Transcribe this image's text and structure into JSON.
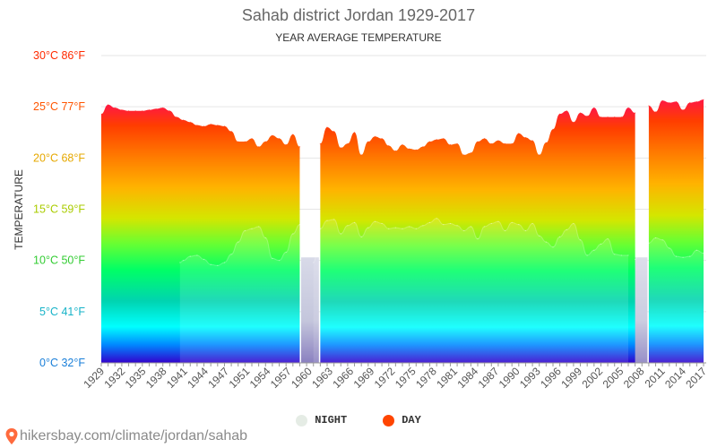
{
  "chart_data": {
    "type": "area",
    "title": "Sahab district Jordan 1929-2017",
    "subtitle": "YEAR AVERAGE TEMPERATURE",
    "ylabel": "TEMPERATURE",
    "xlabel": "",
    "ylim": [
      0,
      30
    ],
    "xlim": [
      1929,
      2017
    ],
    "grid": true,
    "legend_position": "bottom-center",
    "yticks": [
      {
        "value": 0,
        "label": "0°C 32°F",
        "color": "#1a7fd9"
      },
      {
        "value": 5,
        "label": "5°C 41°F",
        "color": "#17b3c8"
      },
      {
        "value": 10,
        "label": "10°C 50°F",
        "color": "#33cc33"
      },
      {
        "value": 15,
        "label": "15°C 59°F",
        "color": "#aacc00"
      },
      {
        "value": 20,
        "label": "20°C 68°F",
        "color": "#e6a800"
      },
      {
        "value": 25,
        "label": "25°C 77°F",
        "color": "#ff5500"
      },
      {
        "value": 30,
        "label": "30°C 86°F",
        "color": "#ff2a00"
      }
    ],
    "xticks": [
      "1929",
      "1932",
      "1935",
      "1938",
      "1941",
      "1944",
      "1947",
      "1951",
      "1954",
      "1957",
      "1960",
      "1963",
      "1966",
      "1969",
      "1972",
      "1975",
      "1978",
      "1981",
      "1984",
      "1987",
      "1990",
      "1993",
      "1996",
      "1999",
      "2002",
      "2005",
      "2008",
      "2011",
      "2014",
      "2017"
    ],
    "series": [
      {
        "name": "DAY",
        "color": "#ff4500",
        "segments": [
          [
            [
              1929,
              24.3
            ],
            [
              1930,
              25.2
            ],
            [
              1931,
              24.9
            ],
            [
              1932,
              24.7
            ],
            [
              1933,
              24.6
            ],
            [
              1934,
              24.6
            ],
            [
              1935,
              24.6
            ],
            [
              1936,
              24.7
            ],
            [
              1937,
              24.8
            ],
            [
              1938,
              24.9
            ],
            [
              1939,
              24.6
            ],
            [
              1940,
              24.0
            ],
            [
              1941,
              23.7
            ],
            [
              1942,
              23.5
            ],
            [
              1943,
              23.2
            ],
            [
              1944,
              23.1
            ],
            [
              1945,
              23.3
            ],
            [
              1946,
              23.2
            ],
            [
              1947,
              23.1
            ],
            [
              1948,
              22.6
            ],
            [
              1949,
              21.6
            ],
            [
              1950,
              21.6
            ],
            [
              1951,
              21.9
            ],
            [
              1952,
              21.1
            ],
            [
              1953,
              21.6
            ],
            [
              1954,
              22.2
            ],
            [
              1955,
              21.9
            ],
            [
              1956,
              21.3
            ],
            [
              1957,
              22.3
            ],
            [
              1958,
              21.1
            ]
          ],
          [
            [
              1961,
              21.4
            ],
            [
              1962,
              23.0
            ],
            [
              1963,
              22.6
            ],
            [
              1964,
              21.0
            ],
            [
              1965,
              21.4
            ],
            [
              1966,
              22.5
            ],
            [
              1967,
              20.3
            ],
            [
              1968,
              21.6
            ],
            [
              1969,
              22.1
            ],
            [
              1970,
              21.9
            ],
            [
              1971,
              21.2
            ],
            [
              1972,
              20.7
            ],
            [
              1973,
              21.3
            ],
            [
              1974,
              20.9
            ],
            [
              1975,
              20.8
            ],
            [
              1976,
              21.1
            ],
            [
              1977,
              21.6
            ],
            [
              1978,
              21.8
            ],
            [
              1979,
              21.9
            ],
            [
              1980,
              21.3
            ],
            [
              1981,
              21.4
            ],
            [
              1982,
              20.3
            ],
            [
              1983,
              20.5
            ],
            [
              1984,
              21.6
            ],
            [
              1985,
              21.9
            ],
            [
              1986,
              21.4
            ],
            [
              1987,
              21.7
            ],
            [
              1988,
              21.4
            ],
            [
              1989,
              21.4
            ],
            [
              1990,
              22.4
            ],
            [
              1991,
              22.0
            ],
            [
              1992,
              21.7
            ],
            [
              1993,
              20.3
            ],
            [
              1994,
              21.5
            ],
            [
              1995,
              22.8
            ],
            [
              1996,
              24.3
            ],
            [
              1997,
              24.6
            ],
            [
              1998,
              23.5
            ],
            [
              1999,
              24.4
            ],
            [
              2000,
              24.1
            ],
            [
              2001,
              24.9
            ],
            [
              2002,
              24.0
            ],
            [
              2003,
              24.0
            ],
            [
              2004,
              24.0
            ],
            [
              2005,
              24.0
            ],
            [
              2006,
              24.9
            ],
            [
              2007,
              24.4
            ]
          ],
          [
            [
              2009,
              25.1
            ],
            [
              2010,
              24.5
            ],
            [
              2011,
              25.6
            ],
            [
              2012,
              25.4
            ],
            [
              2013,
              25.5
            ],
            [
              2014,
              24.7
            ],
            [
              2015,
              25.4
            ],
            [
              2016,
              25.5
            ],
            [
              2017,
              25.7
            ]
          ]
        ]
      },
      {
        "name": "NIGHT",
        "color": "#e8f0e8",
        "segments": [
          [
            [
              1940.5,
              9.8
            ],
            [
              1941,
              10.0
            ],
            [
              1942,
              10.4
            ],
            [
              1943,
              10.5
            ],
            [
              1944,
              10.1
            ],
            [
              1945,
              9.6
            ],
            [
              1946,
              9.5
            ],
            [
              1947,
              9.8
            ],
            [
              1948,
              10.6
            ],
            [
              1949,
              11.8
            ],
            [
              1950,
              12.9
            ],
            [
              1951,
              13.1
            ],
            [
              1952,
              13.3
            ],
            [
              1953,
              12.2
            ],
            [
              1954,
              10.2
            ],
            [
              1955,
              10.0
            ],
            [
              1956,
              10.8
            ],
            [
              1957,
              12.6
            ],
            [
              1958,
              13.5
            ]
          ],
          [
            [
              1960,
              9.8
            ],
            [
              1961,
              13.1
            ],
            [
              1962,
              13.9
            ],
            [
              1963,
              14.0
            ],
            [
              1964,
              12.6
            ],
            [
              1965,
              13.4
            ],
            [
              1966,
              13.7
            ],
            [
              1967,
              12.3
            ],
            [
              1968,
              13.2
            ],
            [
              1969,
              13.8
            ],
            [
              1970,
              13.6
            ],
            [
              1971,
              13.1
            ],
            [
              1972,
              13.2
            ],
            [
              1973,
              13.1
            ],
            [
              1974,
              13.3
            ],
            [
              1975,
              13.1
            ],
            [
              1976,
              13.4
            ],
            [
              1977,
              13.7
            ],
            [
              1978,
              14.1
            ],
            [
              1979,
              13.5
            ],
            [
              1980,
              13.6
            ],
            [
              1981,
              13.4
            ],
            [
              1982,
              12.9
            ],
            [
              1983,
              13.3
            ],
            [
              1984,
              12.1
            ],
            [
              1985,
              13.3
            ],
            [
              1986,
              13.6
            ],
            [
              1987,
              13.8
            ],
            [
              1988,
              12.9
            ],
            [
              1989,
              13.7
            ],
            [
              1990,
              13.5
            ],
            [
              1991,
              12.9
            ],
            [
              1992,
              13.6
            ],
            [
              1993,
              12.4
            ],
            [
              1994,
              11.8
            ],
            [
              1995,
              11.3
            ],
            [
              1996,
              12.3
            ],
            [
              1997,
              13.0
            ],
            [
              1998,
              13.6
            ],
            [
              1999,
              12.0
            ],
            [
              2000,
              10.5
            ],
            [
              2001,
              11.0
            ],
            [
              2002,
              11.6
            ],
            [
              2003,
              12.1
            ],
            [
              2004,
              10.6
            ],
            [
              2005,
              10.5
            ],
            [
              2006,
              10.5
            ]
          ],
          [
            [
              2007,
              10.1
            ],
            [
              2008,
              11.2
            ],
            [
              2009,
              11.7
            ],
            [
              2010,
              12.2
            ],
            [
              2011,
              12.0
            ],
            [
              2012,
              11.2
            ],
            [
              2013,
              10.4
            ],
            [
              2014,
              10.3
            ],
            [
              2015,
              10.4
            ],
            [
              2016,
              11.0
            ],
            [
              2017,
              10.7
            ]
          ]
        ]
      }
    ]
  },
  "legend": {
    "night_label": "NIGHT",
    "day_label": "DAY",
    "night_color": "#e5ece5",
    "day_color": "#ff4500"
  },
  "footer": {
    "url_text": "hikersbay.com/climate/jordan/sahab"
  }
}
